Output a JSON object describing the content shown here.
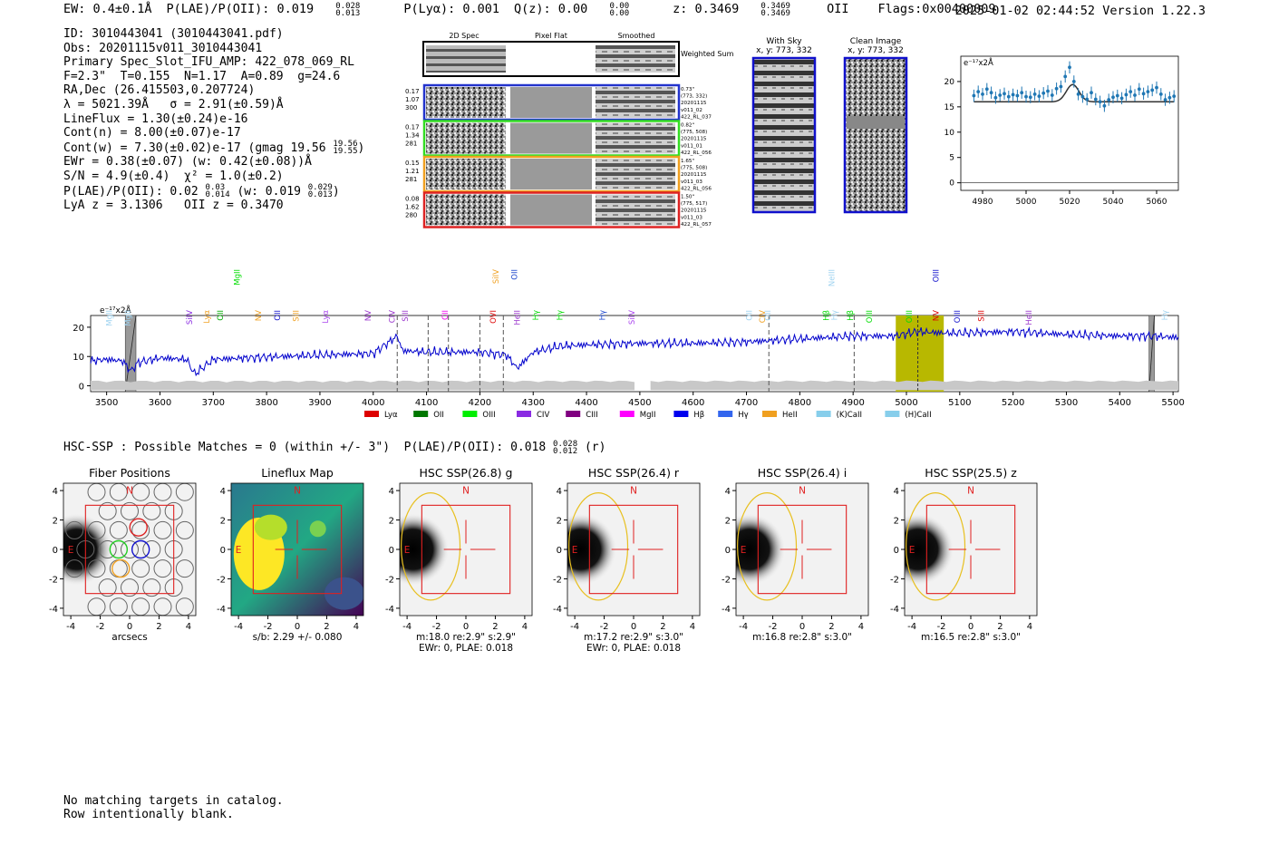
{
  "header": {
    "ew": "EW: 0.4±0.1Å",
    "plae_label": "P(LAE)/P(OII): 0.019",
    "plae_hi": "0.028",
    "plae_lo": "0.013",
    "plya": "P(Lyα): 0.001",
    "qz_label": "Q(z): 0.00",
    "qz_hi": "0.00",
    "qz_lo": "0.00",
    "z_label": "z: 0.3469",
    "z_hi": "0.3469",
    "z_lo": "0.3469",
    "z_line": "OII",
    "flags": "Flags:0x00400009",
    "timestamp": "2025-01-02 02:44:52",
    "version": "Version 1.22.3"
  },
  "info": {
    "id": "ID: 3010443041 (3010443041.pdf)",
    "obs": "Obs: 20201115v011_3010443041",
    "primary": "Primary Spec_Slot_IFU_AMP: 422_078_069_RL",
    "fit": "F=2.3\"  T=0.155  N=1.17  A=0.89  g=24.6",
    "radec": "RA,Dec (26.415503,0.207724)",
    "lambda_sigma": "λ = 5021.39Å   σ = 2.91(±0.59)Å",
    "lineflux": "LineFlux = 1.30(±0.24)e-16",
    "contn": "Cont(n) = 8.00(±0.07)e-17",
    "contw": "Cont(w) = 7.30(±0.02)e-17 (gmag 19.56",
    "gmag_hi": "19.56",
    "gmag_lo": "19.55",
    "ewr": "EWr = 0.38(±0.07) (w: 0.42(±0.08))Å",
    "sn": "S/N = 4.9(±0.4)  χ² = 1.0(±0.2)",
    "plae": "P(LAE)/P(OII): 0.02",
    "plae_hi": "0.03",
    "plae_lo": "0.014",
    "plae_w": "(w: 0.019",
    "plae_w_hi": "0.029",
    "plae_w_lo": "0.013",
    "lya_z": "LyA z = 3.1306   OII z = 0.3470"
  },
  "cutouts": {
    "col_headers": [
      "2D Spec",
      "Pixel Flat",
      "Smoothed"
    ],
    "weighted_sum": "Weighted Sum",
    "rows": [
      {
        "left": [
          "0.17",
          "1.07",
          "300"
        ],
        "right": [
          "0.73\"",
          "(773, 332)",
          "20201115",
          "v011_02",
          "422_RL_037"
        ],
        "color": "#2233cc"
      },
      {
        "left": [
          "0.17",
          "1.34",
          "281"
        ],
        "right": [
          "0.82\"",
          "(775, 508)",
          "20201115",
          "v011_01",
          "422_RL_056"
        ],
        "color": "#33dd22"
      },
      {
        "left": [
          "0.15",
          "1.21",
          "281"
        ],
        "right": [
          "1.65\"",
          "(775, 508)",
          "20201115",
          "v011_03",
          "422_RL_056"
        ],
        "color": "#f0a020"
      },
      {
        "left": [
          "0.08",
          "1.62",
          "280"
        ],
        "right": [
          "1.50\"",
          "(775, 517)",
          "20201115",
          "v011_03",
          "422_RL_057"
        ],
        "color": "#dd2222"
      }
    ],
    "with_sky_title": "With Sky",
    "with_sky_xy": "x, y: 773, 332",
    "clean_title": "Clean Image",
    "clean_xy": "x, y: 773, 332"
  },
  "zoom_chart": {
    "type": "scatter",
    "unit_label": "e⁻¹⁷x2Å",
    "xlim": [
      4970,
      5070
    ],
    "ylim": [
      -1.5,
      25
    ],
    "xticks": [
      4980,
      5000,
      5020,
      5040,
      5060
    ],
    "yticks": [
      0,
      5,
      10,
      15,
      20
    ],
    "x": [
      4976,
      4978,
      4980,
      4982,
      4984,
      4986,
      4988,
      4990,
      4992,
      4994,
      4996,
      4998,
      5000,
      5002,
      5004,
      5006,
      5008,
      5010,
      5012,
      5014,
      5016,
      5018,
      5020,
      5022,
      5024,
      5026,
      5028,
      5030,
      5032,
      5034,
      5036,
      5038,
      5040,
      5042,
      5044,
      5046,
      5048,
      5050,
      5052,
      5054,
      5056,
      5058,
      5060,
      5062,
      5064,
      5066,
      5068
    ],
    "y": [
      17.2,
      18.0,
      17.5,
      18.5,
      17.8,
      16.8,
      17.3,
      17.6,
      17.0,
      17.4,
      17.2,
      17.8,
      17.0,
      16.9,
      17.5,
      17.1,
      17.7,
      18.1,
      17.3,
      18.6,
      19.0,
      21.0,
      22.8,
      20.0,
      17.5,
      17.0,
      16.5,
      17.8,
      16.5,
      16.0,
      15.2,
      16.4,
      16.9,
      17.2,
      16.7,
      17.4,
      18.0,
      17.3,
      18.5,
      17.6,
      18.0,
      18.3,
      18.8,
      17.5,
      16.4,
      16.8,
      17.1
    ],
    "yerr": 1.2,
    "fit": {
      "center": 5021.4,
      "sigma": 2.91,
      "amp": 3.4,
      "base": 16.0,
      "range": [
        4976,
        5068
      ]
    }
  },
  "spectrum": {
    "type": "line",
    "unit_label": "e⁻¹⁷x2Å",
    "xlim": [
      3470,
      5510
    ],
    "ylim": [
      -2,
      24
    ],
    "xticks": [
      3500,
      3600,
      3700,
      3800,
      3900,
      4000,
      4100,
      4200,
      4300,
      4400,
      4500,
      4600,
      4700,
      4800,
      4900,
      5000,
      5100,
      5200,
      5300,
      5400,
      5500
    ],
    "yticks": [
      0,
      10,
      20
    ],
    "anchors_x": [
      3470,
      3500,
      3530,
      3545,
      3560,
      3600,
      3650,
      3665,
      3700,
      3800,
      3900,
      4000,
      4045,
      4055,
      4100,
      4200,
      4250,
      4270,
      4300,
      4350,
      4400,
      4500,
      4600,
      4700,
      4800,
      4900,
      4980,
      5020,
      5070,
      5100,
      5200,
      5300,
      5400,
      5460,
      5510
    ],
    "anchors_y": [
      8.5,
      9.0,
      8.5,
      5.0,
      8.0,
      9.5,
      9.0,
      4.0,
      9.0,
      9.8,
      10.5,
      11.0,
      17.0,
      12.0,
      11.5,
      11.5,
      10.5,
      6.0,
      11.5,
      13.5,
      14.0,
      14.5,
      14.5,
      15.0,
      16.0,
      17.0,
      17.0,
      18.5,
      18.0,
      18.0,
      18.5,
      17.5,
      17.0,
      17.0,
      16.5
    ],
    "noise_amp": 1.3,
    "line_color": "#0000cc",
    "highlight_band": [
      4980,
      5070
    ],
    "highlight_color": "#b8b800",
    "center_wavelength": 5021.39,
    "masked_regions": [
      [
        3535,
        3555
      ],
      [
        5455,
        5465
      ]
    ],
    "dashed_lines": [
      4045,
      4103,
      4141,
      4200,
      4244,
      4742,
      4902
    ],
    "gap_region": [
      4490,
      4520
    ],
    "top_labels": [
      {
        "name": "MgII",
        "x": 3510,
        "color": "#9fd3f0",
        "row": 1
      },
      {
        "name": "MgII",
        "x": 3545,
        "color": "#9fd3f0",
        "row": 1
      },
      {
        "name": "SiIV",
        "x": 3660,
        "color": "#8a2be2",
        "row": 1
      },
      {
        "name": "Lyα",
        "x": 3693,
        "color": "#f0a020",
        "row": 1
      },
      {
        "name": "OII",
        "x": 3718,
        "color": "#00aa00",
        "row": 1
      },
      {
        "name": "MgII",
        "x": 3750,
        "color": "#00dd00",
        "row": 0
      },
      {
        "name": "NV",
        "x": 3790,
        "color": "#f0a020",
        "row": 1
      },
      {
        "name": "OII",
        "x": 3825,
        "color": "#1010cc",
        "row": 1
      },
      {
        "name": "SiII",
        "x": 3860,
        "color": "#f0a020",
        "row": 1
      },
      {
        "name": "Lyα",
        "x": 3915,
        "color": "#aa44ee",
        "row": 1
      },
      {
        "name": "NV",
        "x": 3995,
        "color": "#9933cc",
        "row": 1
      },
      {
        "name": "CIV",
        "x": 4040,
        "color": "#9933cc",
        "row": 1
      },
      {
        "name": "SiII",
        "x": 4065,
        "color": "#9933cc",
        "row": 1
      },
      {
        "name": "CII",
        "x": 4140,
        "color": "#ee00ee",
        "row": 1
      },
      {
        "name": "OVI",
        "x": 4230,
        "color": "#dd0000",
        "row": 1
      },
      {
        "name": "SiIV",
        "x": 4235,
        "color": "#f0a020",
        "row": 0
      },
      {
        "name": "HeII",
        "x": 4275,
        "color": "#9933cc",
        "row": 1
      },
      {
        "name": "OII",
        "x": 4270,
        "color": "#1a44cc",
        "row": 0
      },
      {
        "name": "Hγ",
        "x": 4310,
        "color": "#00dd00",
        "row": 1
      },
      {
        "name": "Hγ",
        "x": 4355,
        "color": "#00dd00",
        "row": 1
      },
      {
        "name": "Hγ",
        "x": 4435,
        "color": "#1a44cc",
        "row": 1
      },
      {
        "name": "SiIV",
        "x": 4490,
        "color": "#aa44ee",
        "row": 1
      },
      {
        "name": "OII",
        "x": 4710,
        "color": "#9fd3f0",
        "row": 1
      },
      {
        "name": "CIV",
        "x": 4735,
        "color": "#f0a020",
        "row": 1
      },
      {
        "name": "OII",
        "x": 4745,
        "color": "#9fd3f0",
        "row": 1
      },
      {
        "name": "Hβ",
        "x": 4855,
        "color": "#00dd00",
        "row": 1
      },
      {
        "name": "Hγ",
        "x": 4870,
        "color": "#9fd3f0",
        "row": 1
      },
      {
        "name": "NeIII",
        "x": 4865,
        "color": "#9fd3f0",
        "row": 0
      },
      {
        "name": "Hβ",
        "x": 4900,
        "color": "#00dd00",
        "row": 1
      },
      {
        "name": "OIII",
        "x": 4935,
        "color": "#00dd00",
        "row": 1
      },
      {
        "name": "OIII",
        "x": 5010,
        "color": "#00dd00",
        "row": 1
      },
      {
        "name": "NV",
        "x": 5060,
        "color": "#dd0000",
        "row": 1
      },
      {
        "name": "OIII",
        "x": 5060,
        "color": "#1010cc",
        "row": 0
      },
      {
        "name": "OIII",
        "x": 5100,
        "color": "#1010cc",
        "row": 1
      },
      {
        "name": "SiII",
        "x": 5145,
        "color": "#dd0000",
        "row": 1
      },
      {
        "name": "HeII",
        "x": 5235,
        "color": "#9933cc",
        "row": 1
      },
      {
        "name": "Hγ",
        "x": 5490,
        "color": "#9fd3f0",
        "row": 1
      }
    ],
    "legend": [
      {
        "name": "Lyα",
        "color": "#dd0000"
      },
      {
        "name": "OII",
        "color": "#007700"
      },
      {
        "name": "OIII",
        "color": "#00ee00"
      },
      {
        "name": "CIV",
        "color": "#8a2be2"
      },
      {
        "name": "CIII",
        "color": "#800080"
      },
      {
        "name": "MgII",
        "color": "#ff00ff"
      },
      {
        "name": "Hβ",
        "color": "#0000ee"
      },
      {
        "name": "Hγ",
        "color": "#3366ee"
      },
      {
        "name": "HeII",
        "color": "#f0a020"
      },
      {
        "name": "(K)CaII",
        "color": "#87ceeb"
      },
      {
        "name": "(H)CaII",
        "color": "#87ceeb"
      }
    ]
  },
  "hsc": {
    "summary": "HSC-SSP : Possible Matches = 0 (within +/- 3\")  P(LAE)/P(OII): 0.018",
    "summary_hi": "0.028",
    "summary_lo": "0.012",
    "summary_band": "(r)",
    "xlim": [
      -4.5,
      4.5
    ],
    "ylim": [
      -4.5,
      4.5
    ],
    "ticks": [
      -4,
      -2,
      0,
      2,
      4
    ],
    "panels": [
      {
        "title": "Fiber Positions",
        "kind": "fibers",
        "caption1": "arcsecs",
        "caption2": ""
      },
      {
        "title": "Lineflux Map",
        "kind": "lineflux",
        "caption1": "s/b: 2.29 +/- 0.080",
        "caption2": ""
      },
      {
        "title": "HSC SSP(26.8) g",
        "kind": "image",
        "caption1": "m:18.0  re:2.9\"  s:2.9\"",
        "caption2": "EWr: 0, PLAE: 0.018"
      },
      {
        "title": "HSC SSP(26.4) r",
        "kind": "image",
        "caption1": "m:17.2  re:2.9\"  s:3.0\"",
        "caption2": "EWr: 0, PLAE: 0.018"
      },
      {
        "title": "HSC SSP(26.4) i",
        "kind": "image",
        "caption1": "m:16.8  re:2.8\"  s:3.0\"",
        "caption2": ""
      },
      {
        "title": "HSC SSP(25.5) z",
        "kind": "image",
        "caption1": "m:16.5  re:2.8\"  s:3.0\"",
        "caption2": ""
      }
    ],
    "north": "N",
    "east": "E"
  },
  "footer": {
    "line1": "No matching targets in catalog.",
    "line2": "Row intentionally blank."
  }
}
